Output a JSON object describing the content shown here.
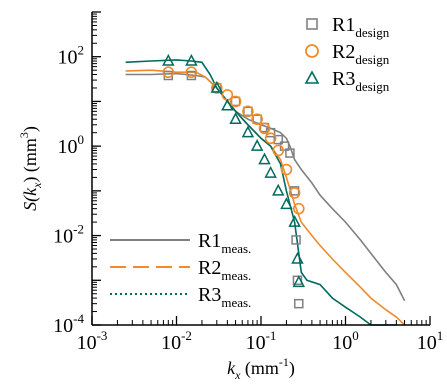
{
  "chart_data": {
    "type": "line",
    "title": "",
    "xlabel": {
      "main": "k",
      "sub": "x",
      "unit": " (mm",
      "sup": "-1",
      "close": ")"
    },
    "ylabel": {
      "main": "S(k",
      "sub": "x",
      "unit": ") (mm",
      "sup": "3",
      "close": ")"
    },
    "x_scale": "log",
    "y_scale": "log",
    "xlim": [
      0.001,
      10
    ],
    "ylim": [
      0.0001,
      1000
    ],
    "x_ticks": [
      {
        "mant": "10",
        "exp": "-3",
        "value": 0.001
      },
      {
        "mant": "10",
        "exp": "-2",
        "value": 0.01
      },
      {
        "mant": "10",
        "exp": "-1",
        "value": 0.1
      },
      {
        "mant": "10",
        "exp": "0",
        "value": 1
      },
      {
        "mant": "10",
        "exp": "1",
        "value": 10
      }
    ],
    "y_ticks": [
      {
        "mant": "10",
        "exp": "-4",
        "value": 0.0001
      },
      {
        "mant": "10",
        "exp": "-2",
        "value": 0.01
      },
      {
        "mant": "10",
        "exp": "0",
        "value": 1
      },
      {
        "mant": "10",
        "exp": "2",
        "value": 100
      }
    ],
    "legend_design": [
      {
        "base": "R1",
        "sub": "design",
        "marker": "square",
        "color": "#808080"
      },
      {
        "base": "R2",
        "sub": "design",
        "marker": "circle",
        "color": "#F08A2B"
      },
      {
        "base": "R3",
        "sub": "design",
        "marker": "triangle",
        "color": "#006B5E"
      }
    ],
    "legend_measured": [
      {
        "base": "R1",
        "sub": "meas.",
        "style": "solid",
        "color": "#808080"
      },
      {
        "base": "R2",
        "sub": "meas.",
        "style": "dashed",
        "color": "#F08A2B"
      },
      {
        "base": "R3",
        "sub": "meas.",
        "style": "dotted",
        "color": "#006B5E"
      }
    ],
    "series": [
      {
        "name": "R1 meas.",
        "kind": "line",
        "color": "#808080",
        "x": [
          0.0025,
          0.005,
          0.01,
          0.017,
          0.022,
          0.03,
          0.04,
          0.05,
          0.07,
          0.1,
          0.13,
          0.17,
          0.2,
          0.22,
          0.25,
          0.27,
          0.3,
          0.4,
          0.5,
          0.7,
          1,
          1.5,
          2,
          3,
          4,
          5
        ],
        "y": [
          40,
          40,
          42,
          38,
          35,
          20,
          10,
          6,
          4,
          3,
          2.5,
          2,
          1.5,
          1.0,
          0.5,
          0.4,
          0.3,
          0.15,
          0.08,
          0.04,
          0.02,
          0.008,
          0.004,
          0.0015,
          0.0008,
          0.00035
        ]
      },
      {
        "name": "R2 meas.",
        "kind": "line",
        "color": "#F08A2B",
        "x": [
          0.0025,
          0.005,
          0.01,
          0.017,
          0.022,
          0.03,
          0.04,
          0.05,
          0.07,
          0.1,
          0.13,
          0.17,
          0.2,
          0.25,
          0.3,
          0.4,
          0.5,
          0.7,
          1,
          1.5,
          2,
          3,
          4,
          5
        ],
        "y": [
          48,
          50,
          45,
          45,
          35,
          20,
          10,
          6,
          3,
          1.5,
          1.0,
          0.5,
          0.2,
          0.05,
          0.02,
          0.01,
          0.006,
          0.003,
          0.0015,
          0.0007,
          0.0004,
          0.00022,
          0.00015,
          0.0001
        ]
      },
      {
        "name": "R3 meas.",
        "kind": "line",
        "color": "#006B5E",
        "x": [
          0.0025,
          0.005,
          0.01,
          0.015,
          0.02,
          0.025,
          0.03,
          0.04,
          0.05,
          0.07,
          0.1,
          0.13,
          0.17,
          0.2,
          0.25,
          0.28,
          0.3,
          0.35,
          0.5,
          0.7,
          1,
          1.5,
          2,
          3,
          4
        ],
        "y": [
          75,
          80,
          85,
          80,
          75,
          40,
          20,
          10,
          6,
          3,
          1.5,
          1.0,
          0.4,
          0.1,
          0.02,
          0.004,
          0.0015,
          0.001,
          0.0008,
          0.0004,
          0.00025,
          0.00015,
          0.0001,
          0.0001,
          0.0001
        ]
      },
      {
        "name": "R1 design",
        "kind": "marker",
        "marker": "square",
        "color": "#808080",
        "x": [
          0.008,
          0.015,
          0.03,
          0.05,
          0.07,
          0.09,
          0.11,
          0.13,
          0.16,
          0.19,
          0.22,
          0.25,
          0.26,
          0.27,
          0.28
        ],
        "y": [
          38,
          38,
          20,
          10,
          6,
          4,
          2.6,
          2.0,
          1.4,
          1.0,
          0.7,
          0.1,
          0.008,
          0.001,
          0.0003
        ]
      },
      {
        "name": "R2 design",
        "kind": "marker",
        "marker": "circle",
        "color": "#F08A2B",
        "x": [
          0.008,
          0.015,
          0.03,
          0.04,
          0.05,
          0.07,
          0.09,
          0.11,
          0.13,
          0.16,
          0.2,
          0.25,
          0.28
        ],
        "y": [
          45,
          45,
          20,
          14,
          10,
          6,
          4,
          2.5,
          1.5,
          0.8,
          0.3,
          0.09,
          0.04
        ]
      },
      {
        "name": "R3 design",
        "kind": "marker",
        "marker": "triangle",
        "color": "#006B5E",
        "x": [
          0.008,
          0.015,
          0.03,
          0.04,
          0.05,
          0.07,
          0.09,
          0.11,
          0.13,
          0.16,
          0.2,
          0.25,
          0.27,
          0.28
        ],
        "y": [
          80,
          80,
          20,
          8,
          4,
          2,
          1.0,
          0.5,
          0.25,
          0.1,
          0.05,
          0.02,
          0.003,
          0.0009
        ]
      }
    ]
  }
}
